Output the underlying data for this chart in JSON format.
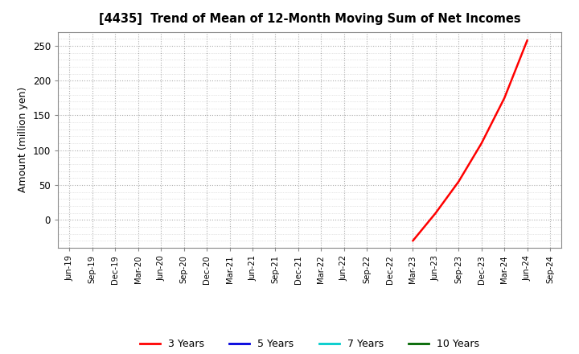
{
  "title": "[4435]  Trend of Mean of 12-Month Moving Sum of Net Incomes",
  "ylabel": "Amount (million yen)",
  "background_color": "#ffffff",
  "grid_color": "#999999",
  "plot_bg_color": "#ffffff",
  "x_tick_labels": [
    "Jun-19",
    "Sep-19",
    "Dec-19",
    "Mar-20",
    "Jun-20",
    "Sep-20",
    "Dec-20",
    "Mar-21",
    "Jun-21",
    "Sep-21",
    "Dec-21",
    "Mar-22",
    "Jun-22",
    "Sep-22",
    "Dec-22",
    "Mar-23",
    "Jun-23",
    "Sep-23",
    "Dec-23",
    "Mar-24",
    "Jun-24",
    "Sep-24"
  ],
  "ylim": [
    -40,
    270
  ],
  "yticks": [
    0,
    50,
    100,
    150,
    200,
    250
  ],
  "series": {
    "3 Years": {
      "color": "#ff0000",
      "x_indices": [
        15,
        16,
        17,
        18,
        19,
        20
      ],
      "y_values": [
        -30,
        10,
        55,
        110,
        175,
        258
      ]
    },
    "5 Years": {
      "color": "#0000dd",
      "x_indices": [],
      "y_values": []
    },
    "7 Years": {
      "color": "#00cccc",
      "x_indices": [],
      "y_values": []
    },
    "10 Years": {
      "color": "#006600",
      "x_indices": [],
      "y_values": []
    }
  },
  "legend_labels": [
    "3 Years",
    "5 Years",
    "7 Years",
    "10 Years"
  ],
  "legend_colors": [
    "#ff0000",
    "#0000dd",
    "#00cccc",
    "#006600"
  ]
}
